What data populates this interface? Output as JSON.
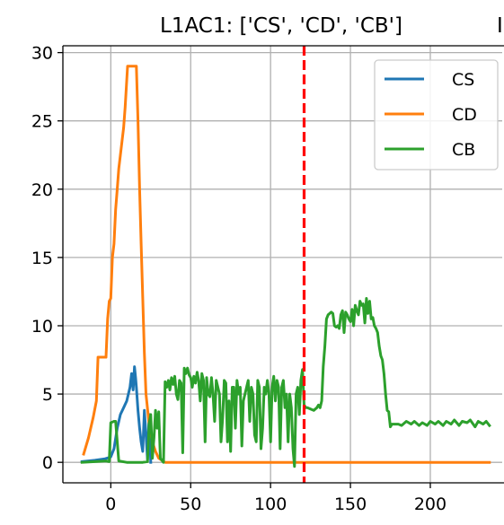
{
  "chart_data": {
    "type": "line",
    "title": "L1AC1: ['CS', 'CD', 'CB']",
    "title_overflow": "I",
    "xlabel": "",
    "ylabel": "",
    "xlim": [
      -30,
      245
    ],
    "ylim": [
      -1.5,
      30.5
    ],
    "xticks": [
      0,
      50,
      100,
      150,
      200
    ],
    "yticks": [
      0,
      5,
      10,
      15,
      20,
      25,
      30
    ],
    "grid": true,
    "legend_position": "top-right",
    "vline": {
      "x": 121,
      "color": "#ff0000",
      "style": "dashed"
    },
    "series": [
      {
        "name": "CS",
        "color": "#1f77b4",
        "points": [
          [
            -18,
            0.05
          ],
          [
            -10,
            0.15
          ],
          [
            -4,
            0.25
          ],
          [
            -1,
            0.35
          ],
          [
            0,
            0.4
          ],
          [
            2,
            1.0
          ],
          [
            4,
            2.5
          ],
          [
            6,
            3.5
          ],
          [
            8,
            4.0
          ],
          [
            10,
            4.5
          ],
          [
            12,
            5.5
          ],
          [
            13,
            6.5
          ],
          [
            14,
            5.3
          ],
          [
            14.8,
            7.0
          ],
          [
            15.5,
            6.2
          ],
          [
            16,
            5.5
          ],
          [
            17,
            3.8
          ],
          [
            18,
            2.5
          ],
          [
            19,
            1.5
          ],
          [
            20,
            0.8
          ],
          [
            21,
            3.8
          ],
          [
            22,
            2.0
          ],
          [
            23,
            0.2
          ],
          [
            24,
            3.5
          ],
          [
            25,
            0.0
          ]
        ]
      },
      {
        "name": "CD",
        "color": "#ff7f0e",
        "points": [
          [
            -17,
            0.6
          ],
          [
            -14,
            1.8
          ],
          [
            -11,
            3.3
          ],
          [
            -9,
            4.5
          ],
          [
            -8,
            7.7
          ],
          [
            -3,
            7.7
          ],
          [
            -2,
            10.5
          ],
          [
            -1,
            11.8
          ],
          [
            0,
            12.0
          ],
          [
            1,
            15.0
          ],
          [
            2,
            16.0
          ],
          [
            3,
            18.5
          ],
          [
            4,
            20.0
          ],
          [
            5,
            21.5
          ],
          [
            6,
            22.5
          ],
          [
            7,
            23.5
          ],
          [
            8,
            24.5
          ],
          [
            9,
            26.0
          ],
          [
            10,
            28.0
          ],
          [
            10.5,
            29.0
          ],
          [
            16,
            29.0
          ],
          [
            16.5,
            27.0
          ],
          [
            17,
            25.0
          ],
          [
            18,
            20.0
          ],
          [
            19,
            16.0
          ],
          [
            20,
            12.0
          ],
          [
            21,
            8.0
          ],
          [
            22,
            5.0
          ],
          [
            24,
            2.8
          ],
          [
            26,
            1.5
          ],
          [
            28,
            0.8
          ],
          [
            30,
            0.3
          ],
          [
            34,
            0.0
          ],
          [
            60,
            0.0
          ],
          [
            100,
            0.0
          ],
          [
            121,
            0.0
          ],
          [
            160,
            0.0
          ],
          [
            200,
            0.0
          ],
          [
            237,
            0.0
          ]
        ]
      },
      {
        "name": "CB",
        "color": "#2ca02c",
        "points": [
          [
            -18,
            0.0
          ],
          [
            -10,
            0.05
          ],
          [
            -3,
            0.1
          ],
          [
            -1,
            0.05
          ],
          [
            0,
            2.9
          ],
          [
            2,
            3.0
          ],
          [
            3,
            3.0
          ],
          [
            4,
            1.5
          ],
          [
            5,
            0.1
          ],
          [
            10,
            0.0
          ],
          [
            20,
            0.0
          ],
          [
            23,
            0.05
          ],
          [
            24,
            2.8
          ],
          [
            25,
            3.5
          ],
          [
            26,
            0.3
          ],
          [
            27,
            1.8
          ],
          [
            28,
            3.8
          ],
          [
            29,
            2.5
          ],
          [
            30,
            3.7
          ],
          [
            31,
            0.3
          ],
          [
            33,
            0.0
          ],
          [
            34,
            5.9
          ],
          [
            35,
            5.5
          ],
          [
            36,
            6.0
          ],
          [
            37,
            5.3
          ],
          [
            38,
            6.2
          ],
          [
            39,
            5.7
          ],
          [
            40,
            6.3
          ],
          [
            41,
            5.0
          ],
          [
            42,
            4.6
          ],
          [
            43,
            6.0
          ],
          [
            44,
            5.8
          ],
          [
            45,
            0.7
          ],
          [
            46,
            6.9
          ],
          [
            47,
            6.5
          ],
          [
            48,
            6.9
          ],
          [
            49,
            6.4
          ],
          [
            50,
            6.2
          ],
          [
            51,
            5.5
          ],
          [
            52,
            6.3
          ],
          [
            53,
            5.8
          ],
          [
            54,
            6.6
          ],
          [
            55,
            6.0
          ],
          [
            56,
            4.5
          ],
          [
            57,
            6.5
          ],
          [
            58,
            6.0
          ],
          [
            59,
            1.5
          ],
          [
            60,
            6.2
          ],
          [
            61,
            5.0
          ],
          [
            62,
            4.8
          ],
          [
            63,
            6.2
          ],
          [
            64,
            5.0
          ],
          [
            65,
            3.0
          ],
          [
            66,
            6.0
          ],
          [
            67,
            5.5
          ],
          [
            68,
            5.0
          ],
          [
            69,
            1.5
          ],
          [
            70,
            3.2
          ],
          [
            71,
            6.0
          ],
          [
            72,
            5.8
          ],
          [
            73,
            1.5
          ],
          [
            74,
            4.5
          ],
          [
            75,
            0.8
          ],
          [
            76,
            5.5
          ],
          [
            77,
            5.5
          ],
          [
            78,
            2.5
          ],
          [
            79,
            6.0
          ],
          [
            80,
            5.0
          ],
          [
            81,
            5.5
          ],
          [
            82,
            1.2
          ],
          [
            83,
            4.5
          ],
          [
            84,
            5.0
          ],
          [
            85,
            5.5
          ],
          [
            86,
            6.0
          ],
          [
            87,
            3.0
          ],
          [
            88,
            5.5
          ],
          [
            89,
            5.0
          ],
          [
            90,
            2.0
          ],
          [
            91,
            1.5
          ],
          [
            92,
            6.0
          ],
          [
            93,
            5.5
          ],
          [
            94,
            1.0
          ],
          [
            95,
            2.5
          ],
          [
            96,
            5.5
          ],
          [
            97,
            5.0
          ],
          [
            98,
            6.0
          ],
          [
            99,
            5.0
          ],
          [
            100,
            1.5
          ],
          [
            101,
            5.5
          ],
          [
            102,
            6.3
          ],
          [
            103,
            4.5
          ],
          [
            104,
            6.0
          ],
          [
            105,
            5.5
          ],
          [
            106,
            1.0
          ],
          [
            107,
            5.5
          ],
          [
            108,
            6.0
          ],
          [
            109,
            4.0
          ],
          [
            110,
            5.0
          ],
          [
            111,
            1.5
          ],
          [
            112,
            5.0
          ],
          [
            113,
            4.0
          ],
          [
            114,
            1.0
          ],
          [
            115,
            -0.3
          ],
          [
            116,
            5.0
          ],
          [
            117,
            5.5
          ],
          [
            118,
            3.5
          ],
          [
            119,
            6.0
          ],
          [
            120,
            6.8
          ],
          [
            121,
            4.2
          ],
          [
            122,
            4.0
          ],
          [
            123,
            4.0
          ],
          [
            125,
            3.9
          ],
          [
            127,
            3.8
          ],
          [
            129,
            4.0
          ],
          [
            130,
            4.2
          ],
          [
            131,
            4.0
          ],
          [
            132,
            4.5
          ],
          [
            133,
            7.0
          ],
          [
            134,
            8.5
          ],
          [
            135,
            10.5
          ],
          [
            136,
            10.8
          ],
          [
            137,
            10.9
          ],
          [
            138,
            11.0
          ],
          [
            139,
            10.9
          ],
          [
            140,
            10.0
          ],
          [
            141,
            9.9
          ],
          [
            142,
            10.0
          ],
          [
            143,
            9.8
          ],
          [
            144,
            10.8
          ],
          [
            145,
            11.1
          ],
          [
            146,
            9.5
          ],
          [
            147,
            11.0
          ],
          [
            148,
            10.8
          ],
          [
            149,
            10.5
          ],
          [
            150,
            10.3
          ],
          [
            151,
            11.2
          ],
          [
            152,
            10.0
          ],
          [
            153,
            11.5
          ],
          [
            154,
            11.1
          ],
          [
            155,
            10.8
          ],
          [
            156,
            11.8
          ],
          [
            157,
            11.5
          ],
          [
            158,
            11.6
          ],
          [
            159,
            10.2
          ],
          [
            160,
            12.0
          ],
          [
            161,
            10.9
          ],
          [
            162,
            11.8
          ],
          [
            163,
            10.5
          ],
          [
            164,
            10.6
          ],
          [
            165,
            10.0
          ],
          [
            166,
            9.8
          ],
          [
            167,
            9.5
          ],
          [
            168,
            8.5
          ],
          [
            169,
            7.8
          ],
          [
            170,
            7.5
          ],
          [
            171,
            6.5
          ],
          [
            172,
            5.0
          ],
          [
            173,
            3.8
          ],
          [
            174,
            3.7
          ],
          [
            175,
            2.6
          ],
          [
            176,
            2.8
          ],
          [
            180,
            2.8
          ],
          [
            182,
            2.7
          ],
          [
            185,
            3.0
          ],
          [
            188,
            2.8
          ],
          [
            190,
            3.0
          ],
          [
            193,
            2.7
          ],
          [
            195,
            2.9
          ],
          [
            198,
            2.7
          ],
          [
            200,
            3.0
          ],
          [
            203,
            2.8
          ],
          [
            205,
            3.0
          ],
          [
            208,
            2.7
          ],
          [
            210,
            3.0
          ],
          [
            213,
            2.8
          ],
          [
            215,
            3.1
          ],
          [
            218,
            2.7
          ],
          [
            220,
            3.0
          ],
          [
            223,
            2.9
          ],
          [
            225,
            3.1
          ],
          [
            228,
            2.6
          ],
          [
            230,
            3.0
          ],
          [
            233,
            2.8
          ],
          [
            235,
            3.0
          ],
          [
            237,
            2.7
          ]
        ]
      }
    ]
  }
}
